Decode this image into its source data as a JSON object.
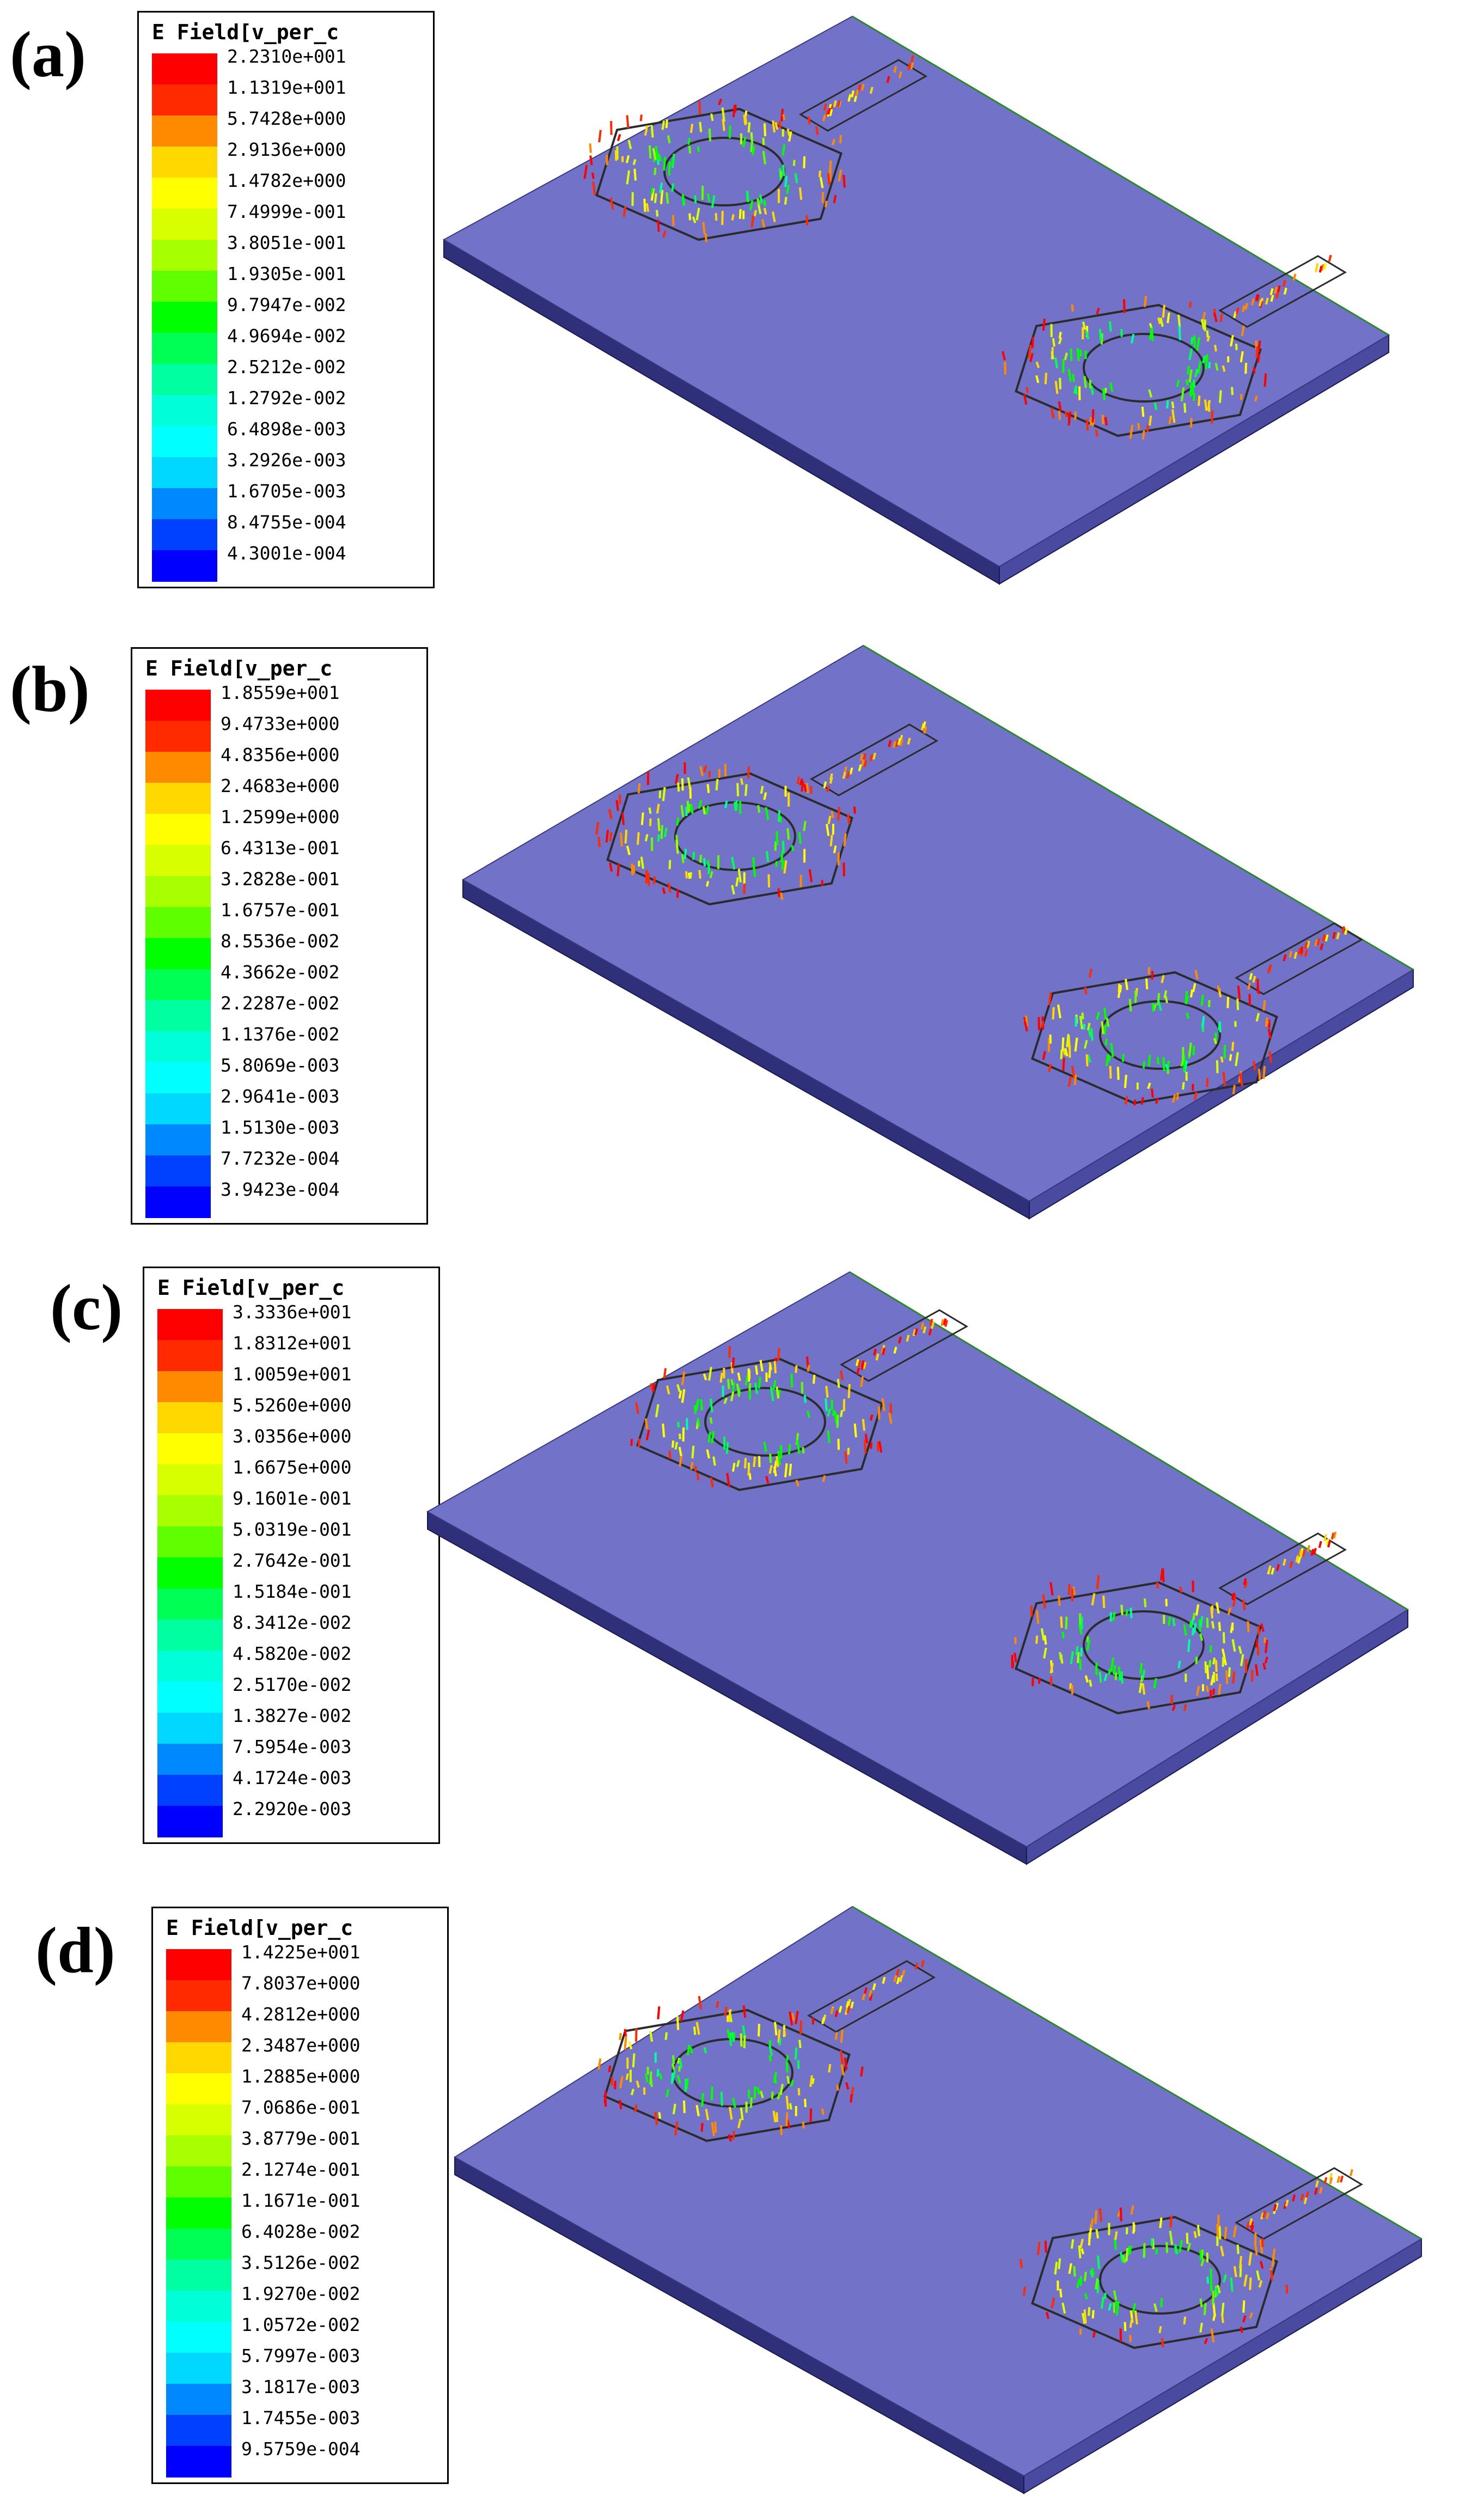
{
  "panels": [
    {
      "label": "(a)",
      "legend_title": "E Field[v_per_c",
      "ticks": [
        "2.2310e+001",
        "1.1319e+001",
        "5.7428e+000",
        "2.9136e+000",
        "1.4782e+000",
        "7.4999e-001",
        "3.8051e-001",
        "1.9305e-001",
        "9.7947e-002",
        "4.9694e-002",
        "2.5212e-002",
        "1.2792e-002",
        "6.4898e-003",
        "3.2926e-003",
        "1.6705e-003",
        "8.4755e-004",
        "4.3001e-004"
      ]
    },
    {
      "label": "(b)",
      "legend_title": "E Field[v_per_c",
      "ticks": [
        "1.8559e+001",
        "9.4733e+000",
        "4.8356e+000",
        "2.4683e+000",
        "1.2599e+000",
        "6.4313e-001",
        "3.2828e-001",
        "1.6757e-001",
        "8.5536e-002",
        "4.3662e-002",
        "2.2287e-002",
        "1.1376e-002",
        "5.8069e-003",
        "2.9641e-003",
        "1.5130e-003",
        "7.7232e-004",
        "3.9423e-004"
      ]
    },
    {
      "label": "(c)",
      "legend_title": "E Field[v_per_c",
      "ticks": [
        "3.3336e+001",
        "1.8312e+001",
        "1.0059e+001",
        "5.5260e+000",
        "3.0356e+000",
        "1.6675e+000",
        "9.1601e-001",
        "5.0319e-001",
        "2.7642e-001",
        "1.5184e-001",
        "8.3412e-002",
        "4.5820e-002",
        "2.5170e-002",
        "1.3827e-002",
        "7.5954e-003",
        "4.1724e-003",
        "2.2920e-003"
      ]
    },
    {
      "label": "(d)",
      "legend_title": "E Field[v_per_c",
      "ticks": [
        "1.4225e+001",
        "7.8037e+000",
        "4.2812e+000",
        "2.3487e+000",
        "1.2885e+000",
        "7.0686e-001",
        "3.8779e-001",
        "2.1274e-001",
        "1.1671e-001",
        "6.4028e-002",
        "3.5126e-002",
        "1.9270e-002",
        "1.0572e-002",
        "5.7997e-003",
        "3.1817e-003",
        "1.7455e-003",
        "9.5759e-004"
      ]
    }
  ],
  "colorscale": [
    "#ff0000",
    "#ff2a00",
    "#ff8a00",
    "#ffd800",
    "#ffff00",
    "#d8ff00",
    "#a8ff00",
    "#60ff00",
    "#00ff00",
    "#00ff55",
    "#00ffa0",
    "#00ffd8",
    "#00ffff",
    "#00d8ff",
    "#0088ff",
    "#0040ff",
    "#0000ff"
  ],
  "substrate_color": "#7272c8"
}
